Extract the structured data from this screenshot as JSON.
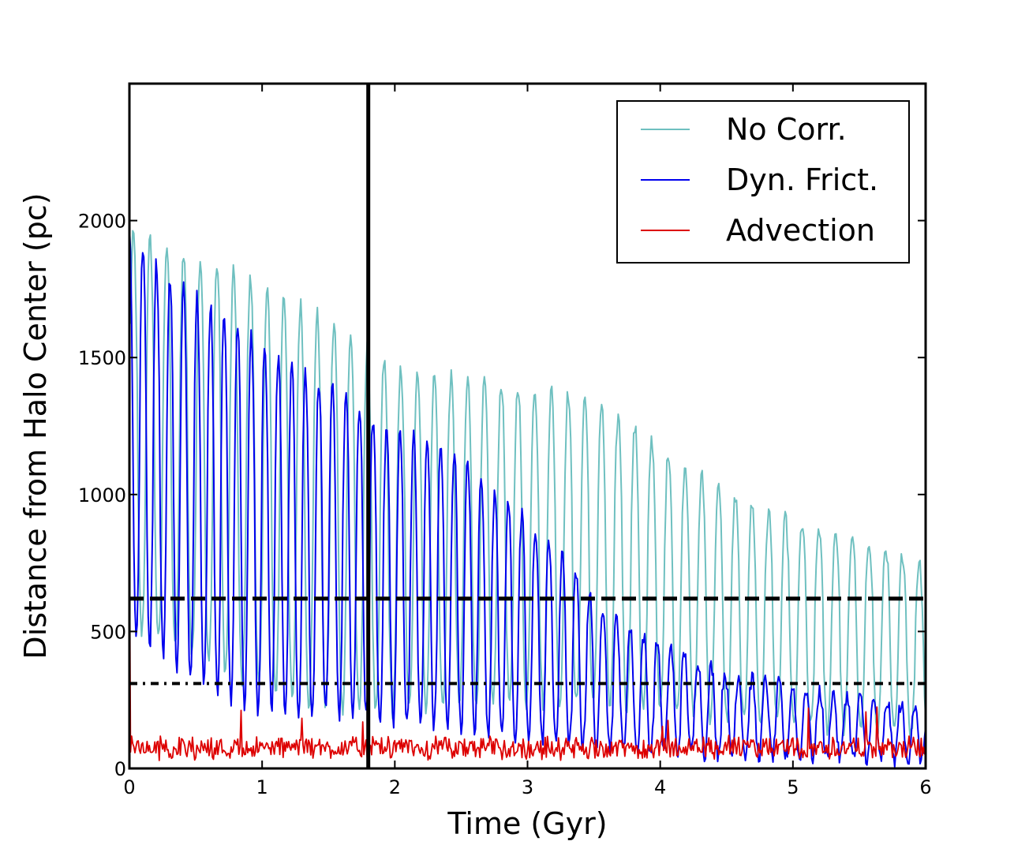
{
  "chart_data": {
    "type": "line",
    "title": "",
    "xlabel": "Time (Gyr)",
    "ylabel": "Distance from Halo Center (pc)",
    "xlim": [
      0,
      6
    ],
    "ylim": [
      0,
      2500
    ],
    "xticks": [
      0,
      1,
      2,
      3,
      4,
      5,
      6
    ],
    "yticks": [
      0,
      500,
      1000,
      1500,
      2000
    ],
    "xtick_labels": [
      "0",
      "1",
      "2",
      "3",
      "4",
      "5",
      "6"
    ],
    "ytick_labels": [
      "0",
      "500",
      "1000",
      "1500",
      "2000"
    ],
    "grid": false,
    "legend_position": "top-right",
    "series": [
      {
        "name": "No Corr.",
        "color": "#6fc0c0",
        "description": "oscillation",
        "peaks": [
          [
            0.05,
            1950
          ],
          [
            0.55,
            1860
          ],
          [
            1.05,
            1760
          ],
          [
            1.55,
            1620
          ],
          [
            2.0,
            1460
          ],
          [
            2.5,
            1420
          ],
          [
            3.0,
            1400
          ],
          [
            3.5,
            1350
          ],
          [
            4.0,
            1180
          ],
          [
            4.5,
            1000
          ],
          [
            5.0,
            900
          ],
          [
            5.5,
            850
          ],
          [
            6.0,
            750
          ]
        ],
        "troughs": [
          [
            0.05,
            500
          ],
          [
            0.6,
            380
          ],
          [
            1.2,
            250
          ],
          [
            1.8,
            200
          ],
          [
            2.5,
            240
          ],
          [
            3.2,
            240
          ],
          [
            3.8,
            220
          ],
          [
            4.5,
            180
          ],
          [
            5.2,
            150
          ],
          [
            6.0,
            120
          ]
        ],
        "period": 0.126,
        "phase": 0.03
      },
      {
        "name": "Dyn. Frict.",
        "color": "#0000ee",
        "description": "oscillation",
        "peaks": [
          [
            0.0,
            1960
          ],
          [
            0.3,
            1800
          ],
          [
            0.8,
            1640
          ],
          [
            1.2,
            1480
          ],
          [
            1.6,
            1380
          ],
          [
            1.9,
            1250
          ],
          [
            2.2,
            1200
          ],
          [
            2.5,
            1150
          ],
          [
            2.8,
            1000
          ],
          [
            3.0,
            900
          ],
          [
            3.2,
            820
          ],
          [
            3.5,
            620
          ],
          [
            3.8,
            500
          ],
          [
            4.2,
            420
          ],
          [
            4.5,
            350
          ],
          [
            5.0,
            300
          ],
          [
            5.5,
            260
          ],
          [
            6.0,
            220
          ]
        ],
        "troughs": [
          [
            0.0,
            500
          ],
          [
            0.8,
            220
          ],
          [
            1.7,
            190
          ],
          [
            2.4,
            140
          ],
          [
            3.2,
            90
          ],
          [
            4.0,
            60
          ],
          [
            5.0,
            40
          ],
          [
            6.0,
            30
          ]
        ],
        "period": 0.102,
        "phase": 0.0
      },
      {
        "name": "Advection",
        "color": "#dd0000",
        "description": "noise",
        "mean": 75,
        "amplitude": 40
      }
    ],
    "reference_lines": [
      {
        "type": "hline",
        "value": 620,
        "style": "dashed",
        "color": "#000000"
      },
      {
        "type": "hline",
        "value": 310,
        "style": "dashdot",
        "color": "#000000"
      },
      {
        "type": "vline",
        "value": 1.8,
        "style": "solid",
        "color": "#000000"
      }
    ]
  }
}
